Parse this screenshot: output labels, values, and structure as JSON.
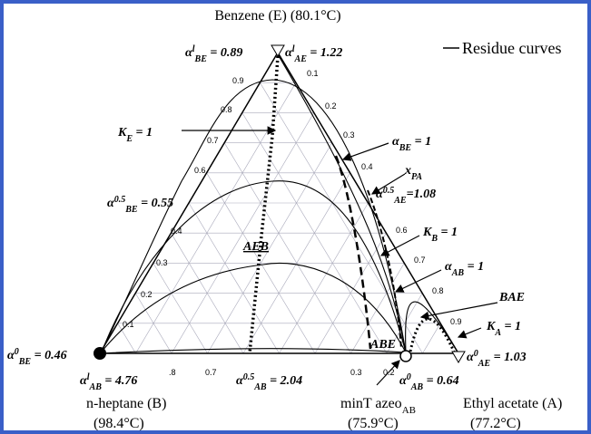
{
  "header": {
    "title": "Benzene (E) (80.1°C)"
  },
  "legend": {
    "label": "Residue curves"
  },
  "alpha_labels": [
    {
      "symbol": "α",
      "sup": "l",
      "sub": "BE",
      "rest": " = 0.89"
    },
    {
      "symbol": "α",
      "sup": "l",
      "sub": "AE",
      "rest": " = 1.22"
    },
    {
      "symbol": "α",
      "sup": "0.5",
      "sub": "BE",
      "rest": " = 0.55"
    },
    {
      "symbol": "α",
      "sup": "",
      "sub": "BE",
      "rest": " = 1"
    },
    {
      "symbol": "α",
      "sup": "0.5",
      "sub": "AE",
      "rest": "=1.08"
    },
    {
      "symbol": "α",
      "sup": "",
      "sub": "AB",
      "rest": " = 1"
    },
    {
      "symbol": "α",
      "sup": "0",
      "sub": "BE",
      "rest": " = 0.46"
    },
    {
      "symbol": "α",
      "sup": "0",
      "sub": "AE",
      "rest": " = 1.03"
    },
    {
      "symbol": "α",
      "sup": "l",
      "sub": "AB",
      "rest": " = 4.76"
    },
    {
      "symbol": "α",
      "sup": "0.5",
      "sub": "AB",
      "rest": " = 2.04"
    },
    {
      "symbol": "α",
      "sup": "0",
      "sub": "AB",
      "rest": " = 0.64"
    }
  ],
  "k_labels": [
    {
      "symbol": "K",
      "sub": "E",
      "rest": " = 1"
    },
    {
      "symbol": "K",
      "sub": "B",
      "rest": " = 1"
    },
    {
      "symbol": "K",
      "sub": "A",
      "rest": " = 1"
    },
    {
      "symbol": "x",
      "sub": "PA",
      "rest": ""
    }
  ],
  "region_labels": [
    "AEB",
    "BAE",
    "ABE"
  ],
  "vertices": [
    {
      "name": "n-heptane (B)",
      "temp": "(98.4°C)"
    },
    {
      "name": "minT azeo",
      "sub": "AB",
      "temp": "(75.9°C)"
    },
    {
      "name": "Ethyl acetate (A)",
      "temp": "(77.2°C)"
    }
  ],
  "left_ticks": [
    "0.9",
    "0.8",
    "0.7",
    "0.6",
    "0.4",
    "0.3",
    "0.2",
    "0.1"
  ],
  "right_ticks": [
    "0.1",
    "0.2",
    "0.3",
    "0.4",
    "0.6",
    "0.7",
    "0.8",
    "0.9"
  ],
  "bottom_ticks": [
    ".8",
    "0.7",
    "0.3",
    "0.2"
  ]
}
